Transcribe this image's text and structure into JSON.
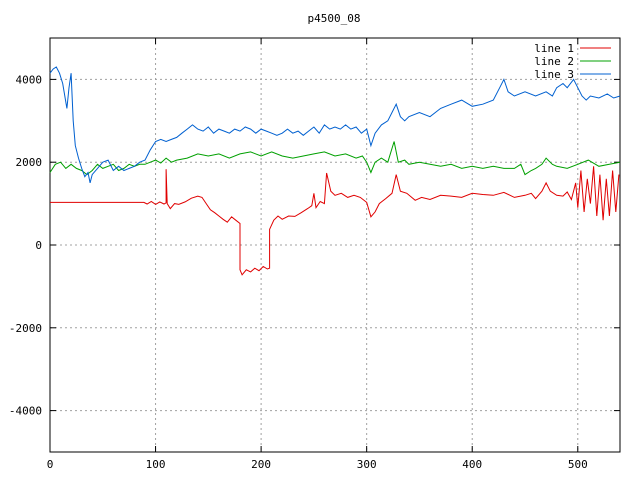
{
  "chart_data": {
    "type": "line",
    "title": "p4500_08",
    "xlabel": "",
    "ylabel": "",
    "xlim": [
      0,
      540
    ],
    "ylim": [
      -5000,
      5000
    ],
    "x_ticks": [
      0,
      100,
      200,
      300,
      400,
      500
    ],
    "y_ticks": [
      -4000,
      -2000,
      0,
      2000,
      4000
    ],
    "grid": true,
    "legend_position": "top-right",
    "series": [
      {
        "name": "line 1",
        "color": "#e00000",
        "points": [
          [
            0,
            1030
          ],
          [
            30,
            1030
          ],
          [
            60,
            1030
          ],
          [
            89,
            1030
          ],
          [
            92,
            990
          ],
          [
            96,
            1050
          ],
          [
            100,
            980
          ],
          [
            104,
            1040
          ],
          [
            108,
            990
          ],
          [
            110,
            1020
          ],
          [
            110,
            1830
          ],
          [
            111,
            1000
          ],
          [
            114,
            880
          ],
          [
            118,
            1000
          ],
          [
            122,
            980
          ],
          [
            128,
            1040
          ],
          [
            134,
            1130
          ],
          [
            140,
            1180
          ],
          [
            144,
            1150
          ],
          [
            148,
            1000
          ],
          [
            152,
            850
          ],
          [
            156,
            780
          ],
          [
            160,
            700
          ],
          [
            164,
            620
          ],
          [
            168,
            550
          ],
          [
            172,
            680
          ],
          [
            176,
            600
          ],
          [
            180,
            520
          ],
          [
            180,
            -600
          ],
          [
            182,
            -720
          ],
          [
            186,
            -600
          ],
          [
            190,
            -650
          ],
          [
            194,
            -560
          ],
          [
            198,
            -620
          ],
          [
            202,
            -520
          ],
          [
            206,
            -580
          ],
          [
            208,
            -560
          ],
          [
            208,
            380
          ],
          [
            212,
            600
          ],
          [
            216,
            700
          ],
          [
            220,
            620
          ],
          [
            226,
            700
          ],
          [
            232,
            690
          ],
          [
            238,
            780
          ],
          [
            244,
            880
          ],
          [
            248,
            950
          ],
          [
            250,
            1250
          ],
          [
            252,
            900
          ],
          [
            256,
            1050
          ],
          [
            260,
            1000
          ],
          [
            262,
            1740
          ],
          [
            266,
            1300
          ],
          [
            270,
            1200
          ],
          [
            276,
            1250
          ],
          [
            282,
            1150
          ],
          [
            288,
            1200
          ],
          [
            294,
            1150
          ],
          [
            300,
            1030
          ],
          [
            304,
            680
          ],
          [
            308,
            800
          ],
          [
            312,
            1000
          ],
          [
            318,
            1120
          ],
          [
            324,
            1250
          ],
          [
            328,
            1700
          ],
          [
            332,
            1300
          ],
          [
            338,
            1250
          ],
          [
            346,
            1080
          ],
          [
            352,
            1150
          ],
          [
            360,
            1100
          ],
          [
            370,
            1200
          ],
          [
            380,
            1180
          ],
          [
            390,
            1150
          ],
          [
            400,
            1250
          ],
          [
            410,
            1220
          ],
          [
            420,
            1200
          ],
          [
            430,
            1270
          ],
          [
            440,
            1150
          ],
          [
            450,
            1200
          ],
          [
            456,
            1250
          ],
          [
            460,
            1120
          ],
          [
            466,
            1300
          ],
          [
            470,
            1500
          ],
          [
            474,
            1300
          ],
          [
            480,
            1200
          ],
          [
            486,
            1180
          ],
          [
            490,
            1280
          ],
          [
            494,
            1100
          ],
          [
            498,
            1500
          ],
          [
            500,
            900
          ],
          [
            503,
            1800
          ],
          [
            506,
            800
          ],
          [
            509,
            1600
          ],
          [
            512,
            1000
          ],
          [
            515,
            1900
          ],
          [
            518,
            700
          ],
          [
            521,
            1700
          ],
          [
            524,
            600
          ],
          [
            527,
            1600
          ],
          [
            530,
            700
          ],
          [
            533,
            1800
          ],
          [
            536,
            800
          ],
          [
            539,
            1700
          ]
        ]
      },
      {
        "name": "line 2",
        "color": "#00a000",
        "points": [
          [
            0,
            1750
          ],
          [
            5,
            1950
          ],
          [
            10,
            2000
          ],
          [
            15,
            1850
          ],
          [
            20,
            1950
          ],
          [
            25,
            1850
          ],
          [
            30,
            1800
          ],
          [
            35,
            1700
          ],
          [
            40,
            1800
          ],
          [
            45,
            1950
          ],
          [
            50,
            1850
          ],
          [
            55,
            1900
          ],
          [
            60,
            1950
          ],
          [
            65,
            1800
          ],
          [
            70,
            1850
          ],
          [
            75,
            1950
          ],
          [
            80,
            1900
          ],
          [
            85,
            1950
          ],
          [
            90,
            1950
          ],
          [
            95,
            2000
          ],
          [
            100,
            2050
          ],
          [
            105,
            1980
          ],
          [
            110,
            2100
          ],
          [
            115,
            2000
          ],
          [
            120,
            2050
          ],
          [
            130,
            2100
          ],
          [
            140,
            2200
          ],
          [
            150,
            2150
          ],
          [
            160,
            2200
          ],
          [
            170,
            2100
          ],
          [
            180,
            2200
          ],
          [
            190,
            2250
          ],
          [
            200,
            2150
          ],
          [
            210,
            2250
          ],
          [
            220,
            2150
          ],
          [
            230,
            2100
          ],
          [
            240,
            2150
          ],
          [
            250,
            2200
          ],
          [
            260,
            2250
          ],
          [
            270,
            2150
          ],
          [
            280,
            2200
          ],
          [
            290,
            2100
          ],
          [
            296,
            2150
          ],
          [
            300,
            2000
          ],
          [
            304,
            1750
          ],
          [
            308,
            2000
          ],
          [
            314,
            2100
          ],
          [
            320,
            2000
          ],
          [
            326,
            2500
          ],
          [
            330,
            2000
          ],
          [
            336,
            2050
          ],
          [
            340,
            1950
          ],
          [
            350,
            2000
          ],
          [
            360,
            1950
          ],
          [
            370,
            1900
          ],
          [
            380,
            1950
          ],
          [
            390,
            1850
          ],
          [
            400,
            1900
          ],
          [
            410,
            1850
          ],
          [
            420,
            1900
          ],
          [
            430,
            1850
          ],
          [
            440,
            1850
          ],
          [
            446,
            1950
          ],
          [
            450,
            1700
          ],
          [
            456,
            1800
          ],
          [
            460,
            1850
          ],
          [
            466,
            1950
          ],
          [
            470,
            2100
          ],
          [
            476,
            1950
          ],
          [
            480,
            1900
          ],
          [
            490,
            1850
          ],
          [
            500,
            1950
          ],
          [
            510,
            2050
          ],
          [
            520,
            1900
          ],
          [
            530,
            1950
          ],
          [
            540,
            2000
          ]
        ]
      },
      {
        "name": "line 3",
        "color": "#0060d0",
        "points": [
          [
            0,
            4150
          ],
          [
            3,
            4250
          ],
          [
            6,
            4300
          ],
          [
            9,
            4150
          ],
          [
            12,
            3900
          ],
          [
            14,
            3600
          ],
          [
            16,
            3300
          ],
          [
            18,
            3800
          ],
          [
            20,
            4150
          ],
          [
            22,
            3000
          ],
          [
            24,
            2400
          ],
          [
            27,
            2100
          ],
          [
            30,
            1850
          ],
          [
            33,
            1650
          ],
          [
            36,
            1750
          ],
          [
            38,
            1500
          ],
          [
            40,
            1700
          ],
          [
            45,
            1850
          ],
          [
            50,
            2000
          ],
          [
            55,
            2050
          ],
          [
            60,
            1800
          ],
          [
            65,
            1900
          ],
          [
            70,
            1800
          ],
          [
            75,
            1850
          ],
          [
            80,
            1900
          ],
          [
            85,
            2000
          ],
          [
            90,
            2050
          ],
          [
            95,
            2300
          ],
          [
            100,
            2500
          ],
          [
            105,
            2550
          ],
          [
            110,
            2500
          ],
          [
            115,
            2550
          ],
          [
            120,
            2600
          ],
          [
            125,
            2700
          ],
          [
            130,
            2800
          ],
          [
            135,
            2900
          ],
          [
            140,
            2800
          ],
          [
            145,
            2750
          ],
          [
            150,
            2850
          ],
          [
            155,
            2700
          ],
          [
            160,
            2800
          ],
          [
            165,
            2750
          ],
          [
            170,
            2700
          ],
          [
            175,
            2800
          ],
          [
            180,
            2750
          ],
          [
            185,
            2850
          ],
          [
            190,
            2800
          ],
          [
            195,
            2700
          ],
          [
            200,
            2800
          ],
          [
            205,
            2750
          ],
          [
            210,
            2700
          ],
          [
            215,
            2650
          ],
          [
            220,
            2700
          ],
          [
            225,
            2800
          ],
          [
            230,
            2700
          ],
          [
            235,
            2750
          ],
          [
            240,
            2650
          ],
          [
            245,
            2750
          ],
          [
            250,
            2850
          ],
          [
            255,
            2700
          ],
          [
            260,
            2900
          ],
          [
            265,
            2800
          ],
          [
            270,
            2850
          ],
          [
            275,
            2800
          ],
          [
            280,
            2900
          ],
          [
            285,
            2800
          ],
          [
            290,
            2850
          ],
          [
            295,
            2700
          ],
          [
            300,
            2800
          ],
          [
            304,
            2400
          ],
          [
            308,
            2700
          ],
          [
            314,
            2900
          ],
          [
            320,
            3000
          ],
          [
            324,
            3200
          ],
          [
            328,
            3400
          ],
          [
            332,
            3100
          ],
          [
            336,
            3000
          ],
          [
            340,
            3100
          ],
          [
            350,
            3200
          ],
          [
            360,
            3100
          ],
          [
            370,
            3300
          ],
          [
            380,
            3400
          ],
          [
            390,
            3500
          ],
          [
            400,
            3350
          ],
          [
            410,
            3400
          ],
          [
            420,
            3500
          ],
          [
            426,
            3800
          ],
          [
            430,
            4000
          ],
          [
            434,
            3700
          ],
          [
            440,
            3600
          ],
          [
            450,
            3700
          ],
          [
            460,
            3600
          ],
          [
            470,
            3700
          ],
          [
            476,
            3600
          ],
          [
            480,
            3800
          ],
          [
            486,
            3900
          ],
          [
            490,
            3800
          ],
          [
            496,
            4000
          ],
          [
            500,
            3800
          ],
          [
            504,
            3600
          ],
          [
            508,
            3500
          ],
          [
            512,
            3600
          ],
          [
            520,
            3550
          ],
          [
            528,
            3650
          ],
          [
            534,
            3550
          ],
          [
            540,
            3600
          ]
        ]
      }
    ]
  }
}
